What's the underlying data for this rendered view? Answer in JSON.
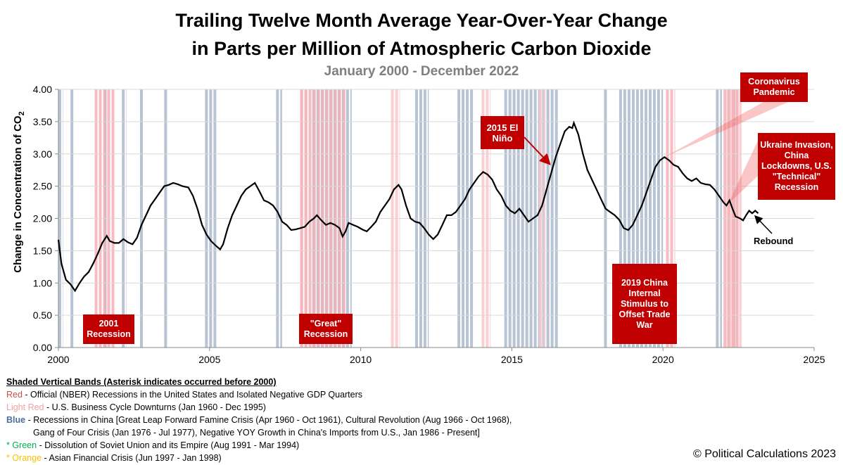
{
  "title_line1": "Trailing Twelve Month Average Year-Over-Year Change",
  "title_line2": "in Parts per Million of Atmospheric Carbon Dioxide",
  "subtitle": "January 2000 - December 2022",
  "chart_data": {
    "type": "line",
    "ylabel": "Change in Concentration of CO",
    "ylabel_subscript": "2",
    "xlim": [
      2000,
      2025
    ],
    "ylim": [
      0,
      4
    ],
    "x_ticks": [
      "2000",
      "2005",
      "2010",
      "2015",
      "2020",
      "2025"
    ],
    "y_ticks": [
      "0.00",
      "0.50",
      "1.00",
      "1.50",
      "2.00",
      "2.50",
      "3.00",
      "3.50",
      "4.00"
    ],
    "grid": true,
    "series": [
      {
        "name": "TTM average YOY change in CO2 ppm",
        "color": "#000000",
        "points": [
          [
            2000.0,
            1.67
          ],
          [
            2000.1,
            1.3
          ],
          [
            2000.25,
            1.05
          ],
          [
            2000.4,
            0.98
          ],
          [
            2000.55,
            0.88
          ],
          [
            2000.7,
            1.0
          ],
          [
            2000.85,
            1.1
          ],
          [
            2001.0,
            1.17
          ],
          [
            2001.15,
            1.3
          ],
          [
            2001.3,
            1.45
          ],
          [
            2001.45,
            1.62
          ],
          [
            2001.6,
            1.73
          ],
          [
            2001.7,
            1.65
          ],
          [
            2001.85,
            1.62
          ],
          [
            2002.0,
            1.62
          ],
          [
            2002.15,
            1.68
          ],
          [
            2002.3,
            1.63
          ],
          [
            2002.45,
            1.6
          ],
          [
            2002.6,
            1.7
          ],
          [
            2002.75,
            1.9
          ],
          [
            2002.9,
            2.05
          ],
          [
            2003.05,
            2.2
          ],
          [
            2003.2,
            2.3
          ],
          [
            2003.35,
            2.4
          ],
          [
            2003.5,
            2.5
          ],
          [
            2003.65,
            2.52
          ],
          [
            2003.8,
            2.55
          ],
          [
            2003.95,
            2.53
          ],
          [
            2004.1,
            2.5
          ],
          [
            2004.3,
            2.48
          ],
          [
            2004.45,
            2.35
          ],
          [
            2004.6,
            2.15
          ],
          [
            2004.75,
            1.9
          ],
          [
            2004.9,
            1.75
          ],
          [
            2005.05,
            1.65
          ],
          [
            2005.2,
            1.58
          ],
          [
            2005.35,
            1.52
          ],
          [
            2005.45,
            1.6
          ],
          [
            2005.6,
            1.85
          ],
          [
            2005.75,
            2.05
          ],
          [
            2005.9,
            2.2
          ],
          [
            2006.05,
            2.35
          ],
          [
            2006.2,
            2.45
          ],
          [
            2006.35,
            2.5
          ],
          [
            2006.5,
            2.55
          ],
          [
            2006.65,
            2.42
          ],
          [
            2006.8,
            2.28
          ],
          [
            2006.95,
            2.25
          ],
          [
            2007.1,
            2.2
          ],
          [
            2007.25,
            2.1
          ],
          [
            2007.4,
            1.95
          ],
          [
            2007.55,
            1.9
          ],
          [
            2007.7,
            1.82
          ],
          [
            2007.85,
            1.83
          ],
          [
            2008.0,
            1.85
          ],
          [
            2008.15,
            1.87
          ],
          [
            2008.3,
            1.95
          ],
          [
            2008.45,
            2.0
          ],
          [
            2008.55,
            2.05
          ],
          [
            2008.7,
            1.97
          ],
          [
            2008.85,
            1.9
          ],
          [
            2009.0,
            1.93
          ],
          [
            2009.15,
            1.9
          ],
          [
            2009.3,
            1.85
          ],
          [
            2009.4,
            1.72
          ],
          [
            2009.5,
            1.8
          ],
          [
            2009.6,
            1.93
          ],
          [
            2009.75,
            1.9
          ],
          [
            2009.9,
            1.87
          ],
          [
            2010.05,
            1.83
          ],
          [
            2010.2,
            1.8
          ],
          [
            2010.35,
            1.87
          ],
          [
            2010.5,
            1.95
          ],
          [
            2010.65,
            2.1
          ],
          [
            2010.8,
            2.2
          ],
          [
            2010.95,
            2.3
          ],
          [
            2011.1,
            2.45
          ],
          [
            2011.25,
            2.52
          ],
          [
            2011.35,
            2.45
          ],
          [
            2011.5,
            2.2
          ],
          [
            2011.65,
            2.0
          ],
          [
            2011.8,
            1.95
          ],
          [
            2011.95,
            1.93
          ],
          [
            2012.1,
            1.85
          ],
          [
            2012.25,
            1.75
          ],
          [
            2012.4,
            1.68
          ],
          [
            2012.55,
            1.75
          ],
          [
            2012.7,
            1.9
          ],
          [
            2012.85,
            2.05
          ],
          [
            2013.0,
            2.05
          ],
          [
            2013.15,
            2.1
          ],
          [
            2013.3,
            2.2
          ],
          [
            2013.45,
            2.3
          ],
          [
            2013.6,
            2.45
          ],
          [
            2013.75,
            2.55
          ],
          [
            2013.9,
            2.65
          ],
          [
            2014.05,
            2.72
          ],
          [
            2014.2,
            2.68
          ],
          [
            2014.35,
            2.6
          ],
          [
            2014.5,
            2.45
          ],
          [
            2014.65,
            2.35
          ],
          [
            2014.8,
            2.2
          ],
          [
            2014.95,
            2.12
          ],
          [
            2015.1,
            2.08
          ],
          [
            2015.25,
            2.15
          ],
          [
            2015.4,
            2.05
          ],
          [
            2015.55,
            1.95
          ],
          [
            2015.7,
            2.0
          ],
          [
            2015.85,
            2.05
          ],
          [
            2016.0,
            2.2
          ],
          [
            2016.15,
            2.45
          ],
          [
            2016.3,
            2.7
          ],
          [
            2016.45,
            2.95
          ],
          [
            2016.6,
            3.15
          ],
          [
            2016.75,
            3.35
          ],
          [
            2016.9,
            3.42
          ],
          [
            2017.0,
            3.4
          ],
          [
            2017.05,
            3.48
          ],
          [
            2017.2,
            3.3
          ],
          [
            2017.35,
            3.0
          ],
          [
            2017.5,
            2.75
          ],
          [
            2017.65,
            2.6
          ],
          [
            2017.8,
            2.45
          ],
          [
            2017.95,
            2.3
          ],
          [
            2018.1,
            2.15
          ],
          [
            2018.25,
            2.1
          ],
          [
            2018.4,
            2.05
          ],
          [
            2018.55,
            1.98
          ],
          [
            2018.7,
            1.85
          ],
          [
            2018.85,
            1.82
          ],
          [
            2019.0,
            1.9
          ],
          [
            2019.15,
            2.05
          ],
          [
            2019.3,
            2.2
          ],
          [
            2019.45,
            2.4
          ],
          [
            2019.6,
            2.6
          ],
          [
            2019.75,
            2.8
          ],
          [
            2019.9,
            2.9
          ],
          [
            2020.05,
            2.95
          ],
          [
            2020.2,
            2.9
          ],
          [
            2020.35,
            2.83
          ],
          [
            2020.5,
            2.8
          ],
          [
            2020.65,
            2.7
          ],
          [
            2020.8,
            2.62
          ],
          [
            2020.95,
            2.58
          ],
          [
            2021.1,
            2.62
          ],
          [
            2021.25,
            2.55
          ],
          [
            2021.4,
            2.53
          ],
          [
            2021.55,
            2.52
          ],
          [
            2021.7,
            2.45
          ],
          [
            2021.85,
            2.35
          ],
          [
            2022.0,
            2.25
          ],
          [
            2022.1,
            2.2
          ],
          [
            2022.2,
            2.28
          ],
          [
            2022.3,
            2.15
          ],
          [
            2022.4,
            2.03
          ],
          [
            2022.55,
            2.0
          ],
          [
            2022.65,
            1.97
          ],
          [
            2022.75,
            2.05
          ],
          [
            2022.85,
            2.12
          ],
          [
            2022.95,
            2.08
          ],
          [
            2023.05,
            2.12
          ],
          [
            2023.15,
            2.08
          ]
        ]
      }
    ],
    "bands_official_recession": [
      [
        2001.2,
        2001.9
      ],
      [
        2008.0,
        2009.5
      ],
      [
        2020.1,
        2020.4
      ],
      [
        2022.0,
        2022.5
      ]
    ],
    "bands_business_downturn": [
      [
        2008.0,
        2008.3
      ],
      [
        2011.0,
        2011.3
      ],
      [
        2014.0,
        2014.3
      ],
      [
        2015.9,
        2016.1
      ],
      [
        2022.1,
        2022.6
      ]
    ],
    "bands_china_recession": [
      [
        2000.0,
        2000.15
      ],
      [
        2000.4,
        2000.5
      ],
      [
        2001.5,
        2001.6
      ],
      [
        2002.1,
        2002.25
      ],
      [
        2002.7,
        2002.8
      ],
      [
        2003.5,
        2003.6
      ],
      [
        2004.85,
        2005.25
      ],
      [
        2007.2,
        2007.4
      ],
      [
        2008.4,
        2009.7
      ],
      [
        2011.8,
        2012.25
      ],
      [
        2013.2,
        2013.75
      ],
      [
        2014.75,
        2016.55
      ],
      [
        2018.05,
        2018.15
      ],
      [
        2018.55,
        2020.0
      ],
      [
        2021.75,
        2021.95
      ],
      [
        2022.3,
        2022.45
      ]
    ],
    "annotations": [
      {
        "text": "2001 Recession"
      },
      {
        "text": "\"Great\" Recession"
      },
      {
        "text": "2015 El Niño"
      },
      {
        "text": "2019 China Internal Stimulus to Offset Trade War"
      },
      {
        "text": "Coronavirus Pandemic"
      },
      {
        "text": "Ukraine Invasion, China Lockdowns, U.S. \"Technical\" Recession"
      },
      {
        "text": "Rebound"
      }
    ]
  },
  "colors": {
    "official_recession": "#f4b0b6",
    "business_downturn": "#f8c8cb",
    "china_recession": "#b8c4d4",
    "line": "#000000",
    "callout": "#c00000",
    "grid": "#d9d9d9",
    "legend_red": "#c0504d",
    "legend_light_red": "#f2a1a1",
    "legend_blue": "#4f6d9a",
    "legend_green": "#00b050",
    "legend_orange": "#ffc000"
  },
  "legend": {
    "header": "Shaded Vertical Bands (Asterisk indicates occurred before 2000)",
    "red_label": "Red",
    "red_text": " - Official (NBER) Recessions in the United States and Isolated Negative GDP Quarters",
    "light_red_label": "Light Red",
    "light_red_text": " - U.S. Business Cycle Downturns (Jan 1960 - Dec 1995)",
    "blue_label": "Blue",
    "blue_text": " - Recessions in China [Great Leap Forward Famine Crisis (Apr 1960 - Oct 1961),  Cultural Revolution (Aug 1966 - Oct 1968),",
    "blue_text2": "Gang of Four Crisis (Jan 1976 -  Jul 1977),  Negative  YOY Growth in China's Imports from U.S., Jan 1986  - Present]",
    "green_label": "* Green",
    "green_text": " - Dissolution of Soviet Union and its Empire (Aug 1991 - Mar 1994)",
    "orange_label": "* Orange",
    "orange_text": " - Asian Financial Crisis (Jun 1997 - Jan 1998)"
  },
  "copyright": "© Political Calculations 2023"
}
